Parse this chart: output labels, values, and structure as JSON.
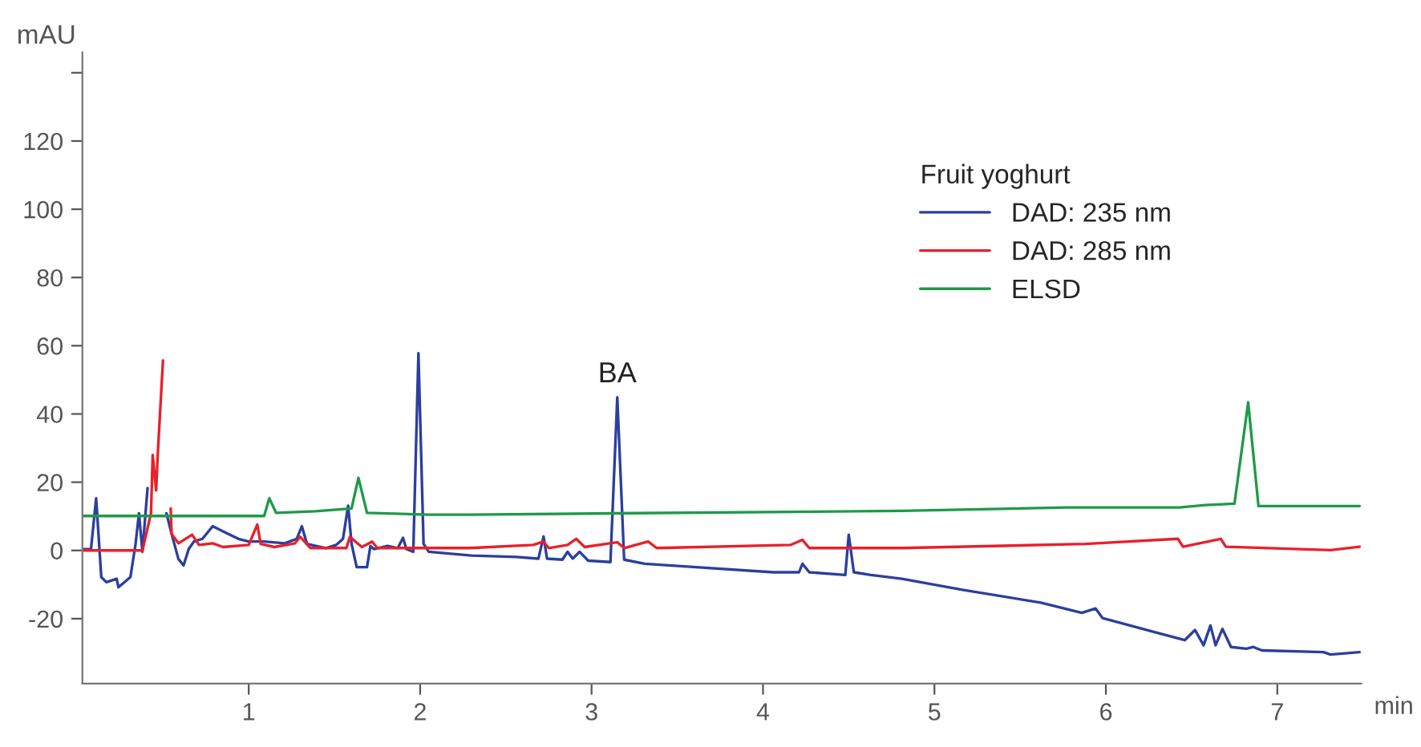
{
  "chart_data": {
    "type": "line",
    "xlabel": "min",
    "ylabel": "mAU",
    "legend_title": "Fruit yoghurt",
    "xlim": [
      0.03,
      7.49
    ],
    "xticks": [
      1,
      2,
      3,
      4,
      5,
      6,
      7
    ],
    "ylim": [
      -39,
      146
    ],
    "yticks": [
      -20,
      0,
      20,
      40,
      60,
      80,
      100,
      120,
      {
        "value": 140,
        "label": null
      }
    ],
    "grid": false,
    "legend": "top right",
    "marker": "none",
    "line_style": "solid",
    "annotations": [
      {
        "text": "BA",
        "x": 3.15,
        "y": 44.9
      }
    ],
    "series": [
      {
        "name": "DAD: 235 nm",
        "color": "#2b3f9e",
        "x": [
          0.03,
          0.08,
          0.11,
          0.14,
          0.17,
          0.23,
          0.24,
          0.31,
          0.34,
          0.36,
          0.38,
          0.41,
          0.43,
          0.45,
          0.48,
          0.52,
          0.55,
          0.59,
          0.62,
          0.65,
          0.68,
          0.73,
          0.79,
          0.85,
          0.94,
          1.0,
          1.09,
          1.21,
          1.28,
          1.31,
          1.34,
          1.45,
          1.51,
          1.55,
          1.58,
          1.6,
          1.63,
          1.69,
          1.71,
          1.73,
          1.81,
          1.87,
          1.9,
          1.92,
          1.96,
          1.99,
          2.02,
          2.05,
          2.14,
          2.3,
          2.56,
          2.69,
          2.72,
          2.74,
          2.83,
          2.86,
          2.89,
          2.93,
          2.98,
          3.11,
          3.15,
          3.19,
          3.31,
          3.61,
          4.06,
          4.21,
          4.23,
          4.27,
          4.48,
          4.5,
          4.53,
          4.63,
          4.81,
          5.17,
          5.62,
          5.86,
          5.94,
          5.98,
          6.31,
          6.46,
          6.52,
          6.57,
          6.61,
          6.64,
          6.68,
          6.73,
          6.82,
          6.86,
          6.91,
          7.27,
          7.31,
          7.48
        ],
        "values": [
          0.4,
          0.4,
          15.3,
          -7.8,
          -9.3,
          -8.3,
          -10.8,
          -7.8,
          1.9,
          10.9,
          -0.4,
          18.3,
          null,
          null,
          null,
          10.9,
          4.9,
          -2.5,
          -4.4,
          0.4,
          2.6,
          3.4,
          7.1,
          5.6,
          3.4,
          2.6,
          2.6,
          2.1,
          3.4,
          7.1,
          1.9,
          0.7,
          1.6,
          3.4,
          13.1,
          1.9,
          -4.9,
          -4.9,
          1.3,
          0.4,
          1.3,
          0.7,
          3.7,
          0.4,
          -0.4,
          57.8,
          1.9,
          -0.4,
          -0.8,
          -1.5,
          -1.9,
          -2.4,
          4.1,
          -2.4,
          -2.7,
          -0.4,
          -2.4,
          -0.4,
          -3.0,
          -3.4,
          44.9,
          -2.7,
          -3.9,
          -4.9,
          -6.4,
          -6.4,
          -3.9,
          -6.4,
          -7.2,
          4.6,
          -6.4,
          -7.2,
          -8.3,
          -11.6,
          -15.3,
          -18.3,
          -17.0,
          -19.8,
          -24.3,
          -26.3,
          -23.3,
          -27.8,
          -22.0,
          -27.8,
          -23.0,
          -28.3,
          -28.8,
          -28.3,
          -29.3,
          -29.8,
          -30.5,
          -29.8
        ]
      },
      {
        "name": "DAD: 285 nm",
        "color": "#e8202a",
        "x": [
          0.03,
          0.38,
          0.43,
          0.44,
          0.46,
          0.47,
          0.5,
          0.52,
          0.535,
          0.545,
          0.55,
          0.59,
          0.67,
          0.71,
          0.79,
          0.85,
          1.0,
          1.05,
          1.07,
          1.15,
          1.27,
          1.3,
          1.36,
          1.57,
          1.59,
          1.66,
          1.72,
          1.75,
          2.29,
          2.66,
          2.72,
          2.75,
          2.86,
          2.91,
          2.96,
          3.15,
          3.19,
          3.33,
          3.38,
          4.16,
          4.23,
          4.27,
          4.81,
          5.88,
          6.42,
          6.45,
          6.67,
          6.7,
          7.31,
          7.48
        ],
        "values": [
          0,
          0,
          10.9,
          28.0,
          17.6,
          28.7,
          55.7,
          null,
          null,
          12.3,
          4.9,
          2.1,
          4.6,
          1.6,
          2.1,
          1.0,
          1.6,
          7.6,
          1.9,
          1.0,
          2.1,
          4.0,
          0.7,
          0.7,
          4.0,
          1.0,
          2.6,
          0.7,
          0.7,
          1.6,
          2.6,
          0.7,
          1.6,
          3.4,
          1.0,
          2.4,
          0.7,
          2.6,
          0.7,
          1.6,
          3.1,
          0.7,
          0.7,
          1.9,
          3.4,
          1.1,
          3.4,
          1.1,
          0.1,
          1.1
        ]
      },
      {
        "name": "ELSD",
        "color": "#1e9a48",
        "x": [
          0.03,
          1.09,
          1.12,
          1.16,
          1.39,
          1.6,
          1.64,
          1.69,
          2.05,
          2.29,
          4.81,
          5.77,
          6.43,
          6.58,
          6.75,
          6.83,
          6.89,
          7.48
        ],
        "values": [
          10.1,
          10.1,
          15.3,
          11.0,
          11.5,
          12.3,
          21.3,
          11.0,
          10.5,
          10.5,
          11.6,
          12.6,
          12.6,
          13.3,
          13.7,
          43.4,
          13.0,
          13.0
        ]
      }
    ]
  }
}
